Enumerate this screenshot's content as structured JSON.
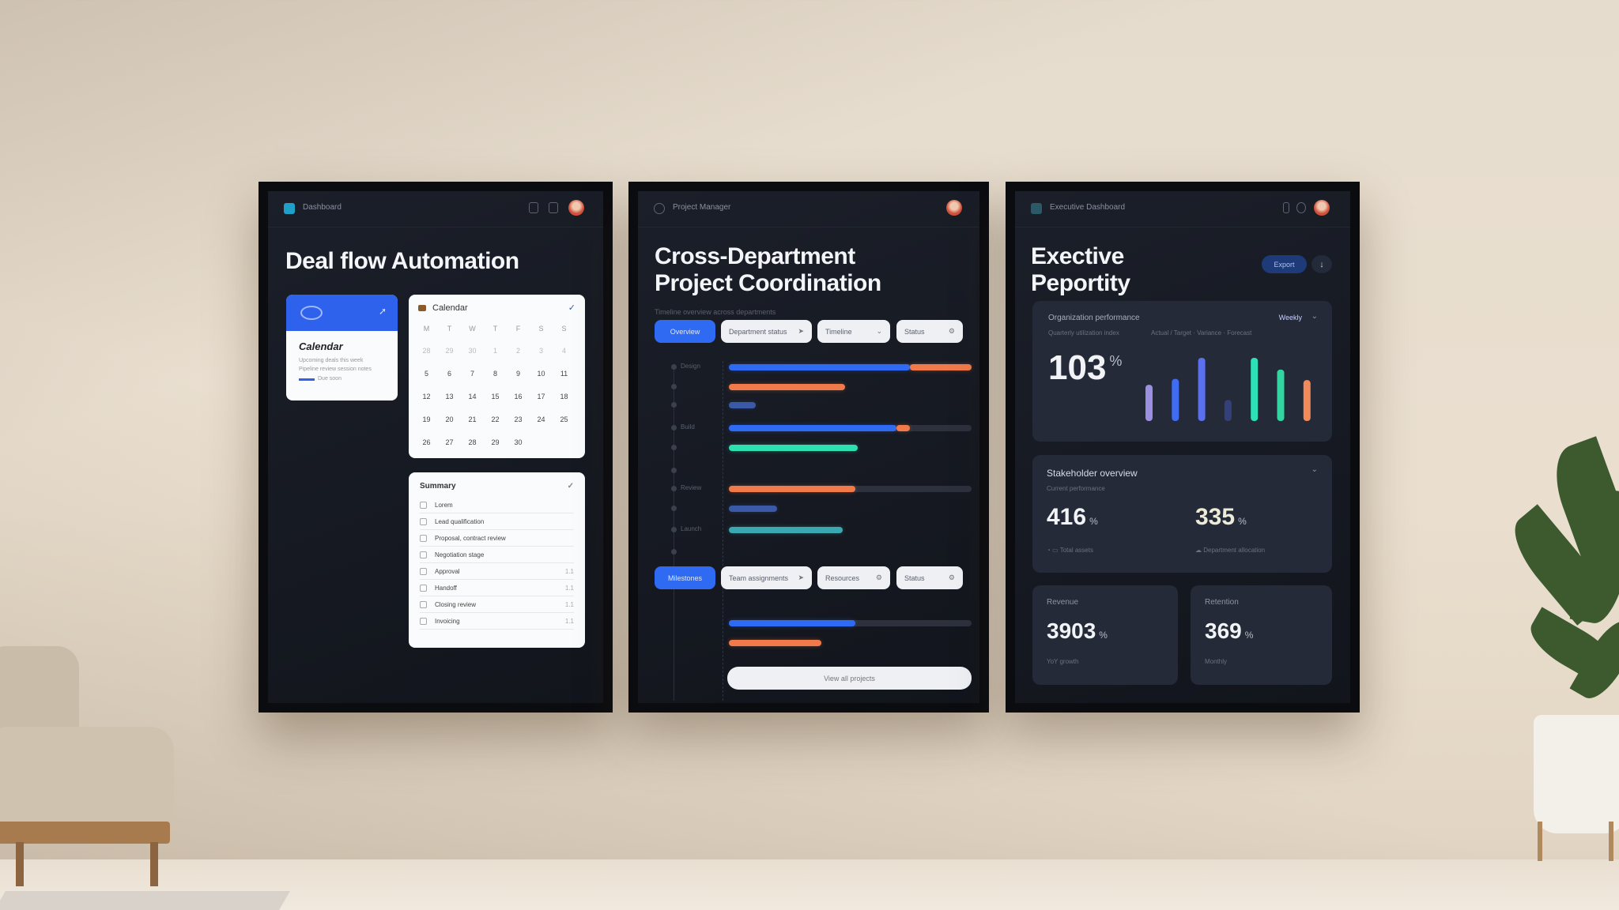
{
  "colors": {
    "accent_blue": "#2f6bf2",
    "orange": "#f07a4a",
    "teal": "#2ee0b0",
    "panel_bg": "#12151c",
    "card_bg": "#242a38"
  },
  "left": {
    "brand": "Dashboard",
    "title": "Deal flow Automation",
    "blue_card": {
      "title": "Calendar",
      "line1": "Upcoming deals this week",
      "line2": "Pipeline review session notes",
      "tag": "Due soon"
    },
    "calendar": {
      "title": "Calendar",
      "weekdays": [
        "M",
        "T",
        "W",
        "T",
        "F",
        "S",
        "S"
      ],
      "days": [
        [
          "28",
          "29",
          "30",
          "1",
          "2",
          "3",
          "4"
        ],
        [
          "5",
          "6",
          "7",
          "8",
          "9",
          "10",
          "11"
        ],
        [
          "12",
          "13",
          "14",
          "15",
          "16",
          "17",
          "18"
        ],
        [
          "19",
          "20",
          "21",
          "22",
          "23",
          "24",
          "25"
        ],
        [
          "26",
          "27",
          "28",
          "29",
          "30"
        ]
      ]
    },
    "checklist": {
      "title": "Summary",
      "items": [
        {
          "label": "Lorem"
        },
        {
          "label": "Lead qualification"
        },
        {
          "label": "Proposal, contract review"
        },
        {
          "label": "Negotiation stage"
        },
        {
          "label": "Approval",
          "meta": "1.1"
        },
        {
          "label": "Handoff",
          "meta": "1.1"
        },
        {
          "label": "Closing review",
          "meta": "1.1"
        },
        {
          "label": "Invoicing",
          "meta": "1.1"
        }
      ]
    }
  },
  "middle": {
    "brand": "Project Manager",
    "title_line1": "Cross-Department",
    "title_line2": "Project Coordination",
    "subtitle": "Timeline overview across departments",
    "filters": [
      {
        "label": "Overview",
        "primary": true
      },
      {
        "label": "Department status",
        "icon": "arrow"
      },
      {
        "label": "Timeline",
        "icon": "chevron"
      },
      {
        "label": "Status",
        "icon": "gear"
      }
    ],
    "lanes": [
      "Design",
      "",
      "",
      "Build",
      "",
      "",
      "Review",
      "",
      "Launch",
      "",
      ""
    ],
    "rows": [
      {
        "segments": [
          {
            "value": 0.745,
            "color": "#2f6bf2"
          },
          {
            "value": 0.255,
            "color": "#f07a4a"
          }
        ],
        "track": true
      },
      {
        "segments": [
          {
            "value": 0.48,
            "color": "#f07a4a"
          }
        ],
        "track": false
      },
      {
        "segments": [
          {
            "value": 0.11,
            "color": "#3a5aa8"
          }
        ],
        "track": false
      },
      {
        "segments": [
          {
            "value": 0.69,
            "color": "#2f6bf2"
          },
          {
            "value": 0.055,
            "color": "#f07a4a"
          }
        ],
        "track": true
      },
      {
        "segments": [
          {
            "value": 0.53,
            "color": "#2ee0b0"
          }
        ],
        "track": false
      },
      {
        "segments": [
          {
            "value": 0.52,
            "color": "#f07a4a"
          }
        ],
        "track": true
      },
      {
        "segments": [
          {
            "value": 0.2,
            "color": "#3a5aa8"
          }
        ],
        "track": false
      },
      {
        "segments": [
          {
            "value": 0.47,
            "color": "#3aa8b0"
          }
        ],
        "track": false
      }
    ],
    "filters2": [
      {
        "label": "Milestones",
        "primary": true
      },
      {
        "label": "Team assignments",
        "icon": "arrow"
      },
      {
        "label": "Resources",
        "icon": "gear"
      },
      {
        "label": "Status",
        "icon": "gear"
      }
    ],
    "rows2": [
      {
        "segments": [
          {
            "value": 0.52,
            "color": "#2f6bf2"
          }
        ],
        "track": true
      },
      {
        "segments": [
          {
            "value": 0.38,
            "color": "#f07a4a"
          }
        ],
        "track": false
      }
    ],
    "bottom_button": "View all projects"
  },
  "right": {
    "brand": "Executive Dashboard",
    "title_line1": "Exective",
    "title_line2": "Peportity",
    "export_button": "Export",
    "kpi_chart": {
      "title": "Organization performance",
      "subtitle": "Quarterly utilization index",
      "filter": "Weekly",
      "legend": "Actual / Target · Variance · Forecast",
      "value": "103",
      "unit": "%",
      "chart_data": {
        "type": "bar",
        "values": [
          31,
          36,
          54,
          18,
          54,
          44,
          35
        ],
        "colors": [
          "#9b8fe0",
          "#3f6cf0",
          "#5a70ef",
          "#34407a",
          "#2de0b8",
          "#30d5a0",
          "#f08a5a"
        ]
      }
    },
    "summary": {
      "title": "Stakeholder overview",
      "subtitle": "Current performance",
      "a": {
        "value": "416",
        "unit": "%",
        "caption": "Total assets"
      },
      "b": {
        "value": "335",
        "unit": "%",
        "caption": "Department allocation"
      }
    },
    "tiles": [
      {
        "label": "Revenue",
        "value": "3903",
        "unit": "%",
        "caption": "YoY growth"
      },
      {
        "label": "Retention",
        "value": "369",
        "unit": "%",
        "caption": "Monthly"
      }
    ]
  }
}
